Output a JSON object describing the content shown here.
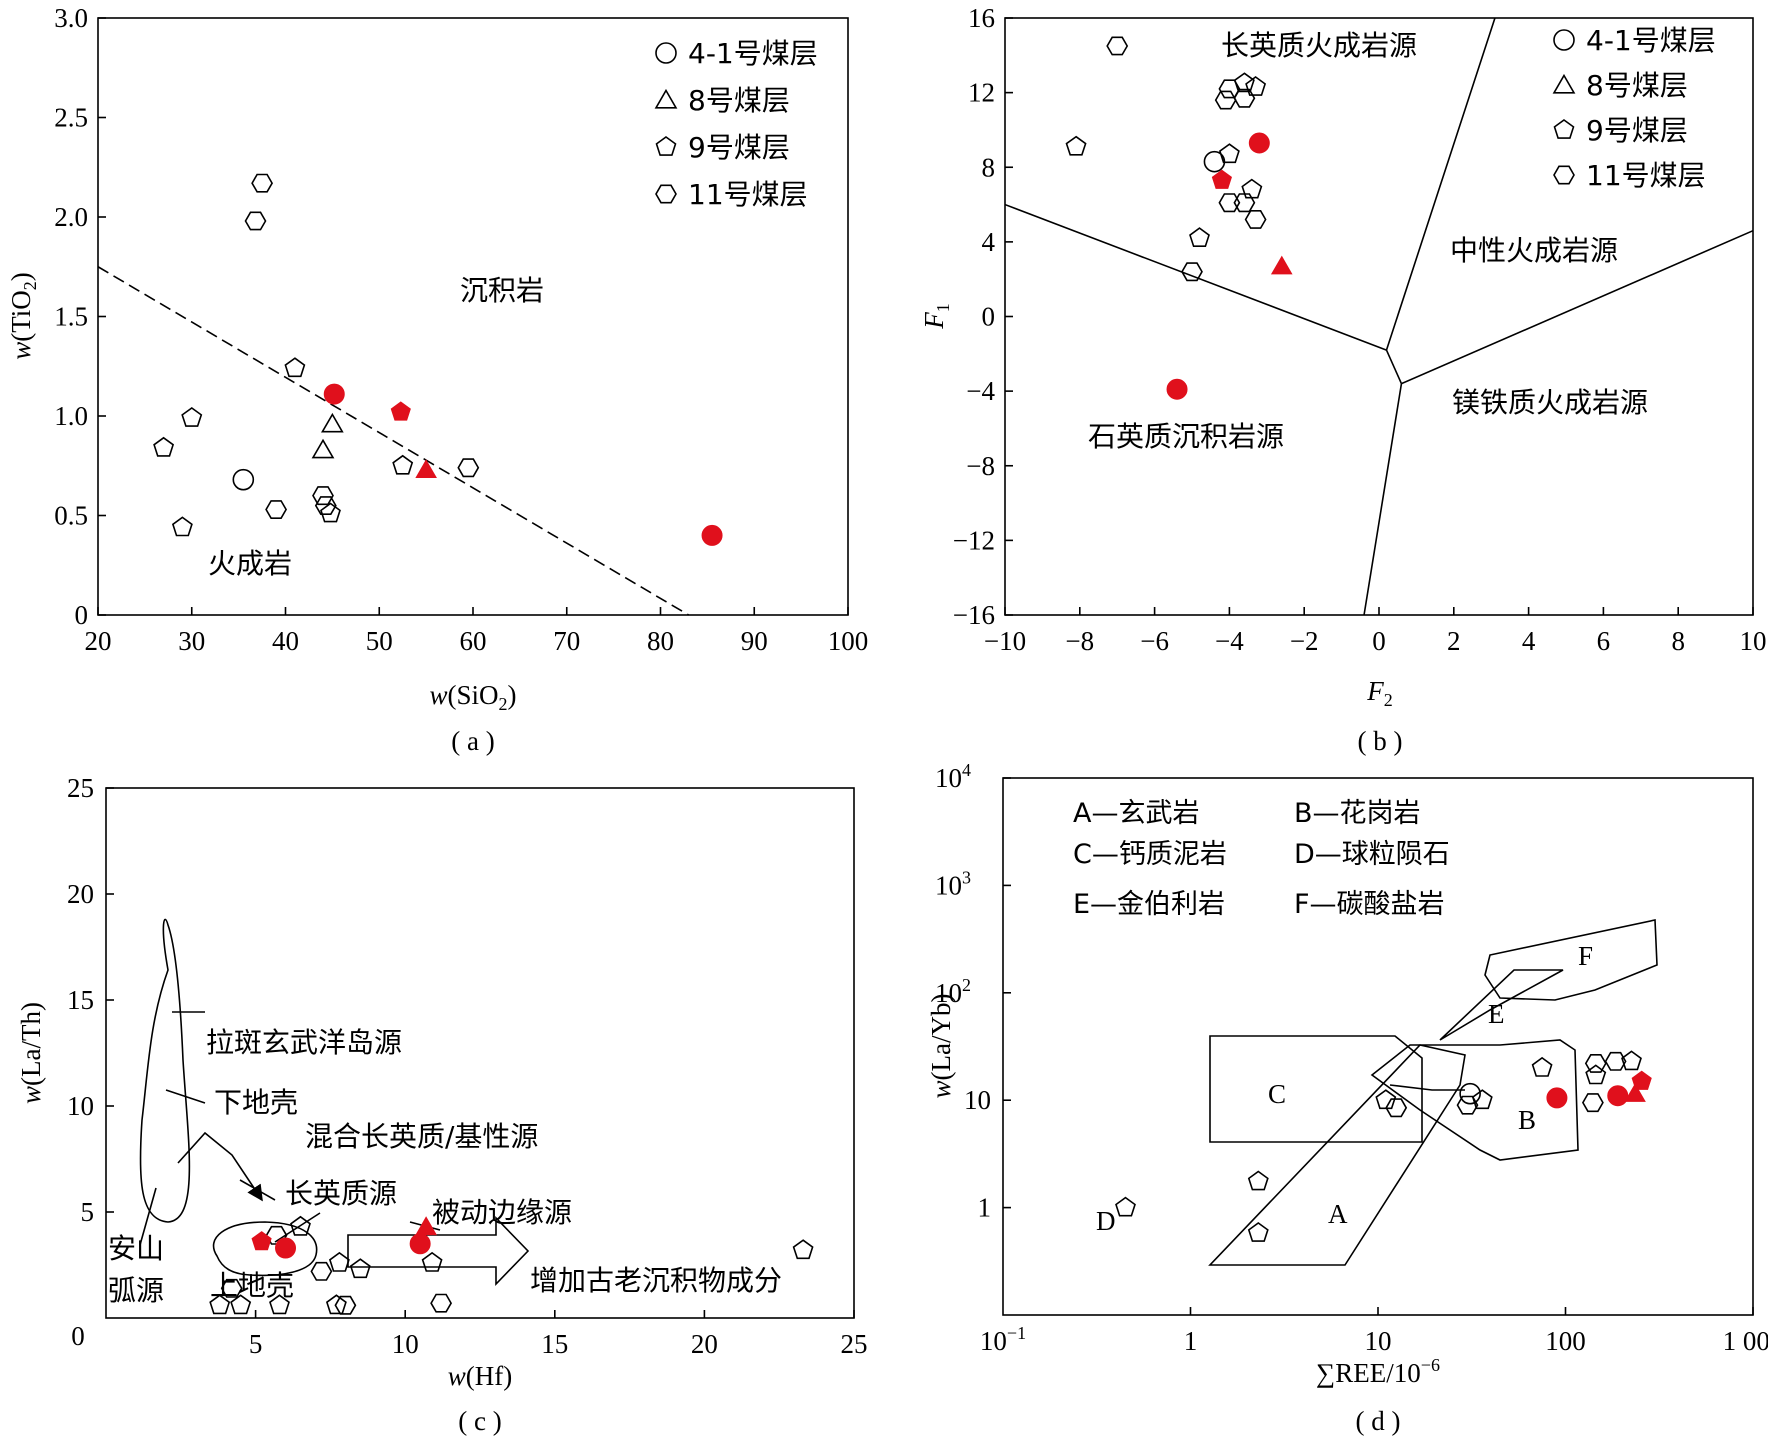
{
  "colors": {
    "red": "#e0101c",
    "black": "#000000"
  },
  "legend": [
    {
      "symbol": "circle",
      "label": "4-1号煤层"
    },
    {
      "symbol": "triangle",
      "label": "8号煤层"
    },
    {
      "symbol": "pentagon",
      "label": "9号煤层"
    },
    {
      "symbol": "hexagon",
      "label": "11号煤层"
    }
  ],
  "chart_data": [
    {
      "panel": "a",
      "caption": "( a )",
      "type": "scatter",
      "xlabel_var": "w",
      "xlabel_arg": "(SiO",
      "xlabel_sub": "2",
      "xlabel_end": ")",
      "ylabel_var": "w",
      "ylabel_arg": "(TiO",
      "ylabel_sub": "2",
      "ylabel_end": ")",
      "xlim": [
        20,
        100
      ],
      "ylim": [
        0,
        3.0
      ],
      "xticks": [
        "20",
        "30",
        "40",
        "50",
        "60",
        "70",
        "80",
        "90",
        "100"
      ],
      "yticks": [
        "0",
        "0.5",
        "1.0",
        "1.5",
        "2.0",
        "2.5",
        "3.0"
      ],
      "annotations": [
        "沉积岩",
        "火成岩"
      ],
      "divider": [
        [
          20,
          1.75
        ],
        [
          83,
          0
        ]
      ],
      "points": [
        {
          "s": "hexagon",
          "x": 37.5,
          "y": 2.17
        },
        {
          "s": "hexagon",
          "x": 36.8,
          "y": 1.98
        },
        {
          "s": "pentagon",
          "x": 41,
          "y": 1.24
        },
        {
          "s": "triangle",
          "x": 45,
          "y": 0.96
        },
        {
          "s": "triangle",
          "x": 44,
          "y": 0.83
        },
        {
          "s": "pentagon",
          "x": 27,
          "y": 0.84
        },
        {
          "s": "pentagon",
          "x": 30,
          "y": 0.99
        },
        {
          "s": "circle",
          "x": 35.5,
          "y": 0.68
        },
        {
          "s": "hexagon",
          "x": 39,
          "y": 0.53
        },
        {
          "s": "hexagon",
          "x": 44,
          "y": 0.6
        },
        {
          "s": "hexagon",
          "x": 44.3,
          "y": 0.55
        },
        {
          "s": "pentagon",
          "x": 44.8,
          "y": 0.51
        },
        {
          "s": "pentagon",
          "x": 52.5,
          "y": 0.75
        },
        {
          "s": "hexagon",
          "x": 59.5,
          "y": 0.74
        },
        {
          "s": "pentagon",
          "x": 29,
          "y": 0.44
        },
        {
          "s": "circle",
          "x": 45.2,
          "y": 1.11,
          "red": true
        },
        {
          "s": "pentagon",
          "x": 52.3,
          "y": 1.02,
          "red": true
        },
        {
          "s": "triangle",
          "x": 55,
          "y": 0.73,
          "red": true
        },
        {
          "s": "circle",
          "x": 85.5,
          "y": 0.4,
          "red": true
        }
      ]
    },
    {
      "panel": "b",
      "caption": "( b )",
      "type": "scatter",
      "xlabel_var": "F",
      "xlabel_sub": "2",
      "ylabel_var": "F",
      "ylabel_sub": "1",
      "xlim": [
        -10,
        10
      ],
      "ylim": [
        -16,
        16
      ],
      "xticks": [
        "−10",
        "−8",
        "−6",
        "−4",
        "−2",
        "0",
        "2",
        "4",
        "6",
        "8",
        "10"
      ],
      "yticks": [
        "−16",
        "−12",
        "−8",
        "−4",
        "0",
        "4",
        "8",
        "12",
        "16"
      ],
      "annotations": [
        "长英质火成岩源",
        "中性火成岩源",
        "石英质沉积岩源",
        "镁铁质火成岩源"
      ],
      "boundaries": [
        [
          [
            -10,
            6
          ],
          [
            0.2,
            -1.8
          ]
        ],
        [
          [
            0.2,
            -1.8
          ],
          [
            3.1,
            16
          ]
        ],
        [
          [
            0.2,
            -1.8
          ],
          [
            0.6,
            -3.6
          ]
        ],
        [
          [
            0.6,
            -3.6
          ],
          [
            10,
            4.6
          ]
        ],
        [
          [
            0.6,
            -3.6
          ],
          [
            -0.4,
            -16
          ]
        ]
      ],
      "points": [
        {
          "s": "hexagon",
          "x": -7,
          "y": 14.5
        },
        {
          "s": "pentagon",
          "x": -8.1,
          "y": 9.1
        },
        {
          "s": "hexagon",
          "x": -4,
          "y": 12.2
        },
        {
          "s": "pentagon",
          "x": -3.6,
          "y": 12.5
        },
        {
          "s": "pentagon",
          "x": -3.3,
          "y": 12.3
        },
        {
          "s": "hexagon",
          "x": -4.1,
          "y": 11.6
        },
        {
          "s": "hexagon",
          "x": -3.6,
          "y": 11.7
        },
        {
          "s": "pentagon",
          "x": -4,
          "y": 8.7
        },
        {
          "s": "circle",
          "x": -4.4,
          "y": 8.3
        },
        {
          "s": "pentagon",
          "x": -3.4,
          "y": 6.8
        },
        {
          "s": "hexagon",
          "x": -4,
          "y": 6.1
        },
        {
          "s": "hexagon",
          "x": -3.6,
          "y": 6.1
        },
        {
          "s": "hexagon",
          "x": -3.3,
          "y": 5.2
        },
        {
          "s": "pentagon",
          "x": -4.8,
          "y": 4.2
        },
        {
          "s": "hexagon",
          "x": -5,
          "y": 2.4
        },
        {
          "s": "circle",
          "x": -3.2,
          "y": 9.3,
          "red": true
        },
        {
          "s": "pentagon",
          "x": -4.2,
          "y": 7.3,
          "red": true
        },
        {
          "s": "triangle",
          "x": -2.6,
          "y": 2.7,
          "red": true
        },
        {
          "s": "circle",
          "x": -5.4,
          "y": -3.9,
          "red": true
        }
      ]
    },
    {
      "panel": "c",
      "caption": "( c )",
      "type": "scatter",
      "xlabel_var": "w",
      "xlabel_arg": "(Hf)",
      "ylabel_var": "w",
      "ylabel_arg": "(La/Th)",
      "xlim": [
        0,
        25
      ],
      "ylim": [
        0,
        25
      ],
      "xticks": [
        "0",
        "5",
        "10",
        "15",
        "20",
        "25"
      ],
      "yticks": [
        "5",
        "10",
        "15",
        "20",
        "25"
      ],
      "annotations": [
        "拉斑玄武洋岛源",
        "下地壳",
        "混合长英质/基性源",
        "长英质源",
        "被动边缘源",
        "安山",
        "弧源",
        "上地壳",
        "增加古老沉积物成分"
      ],
      "points": [
        {
          "s": "hexagon",
          "x": 5.7,
          "y": 3.9
        },
        {
          "s": "pentagon",
          "x": 6.5,
          "y": 4.3
        },
        {
          "s": "hexagon",
          "x": 4.2,
          "y": 1.4
        },
        {
          "s": "pentagon",
          "x": 3.8,
          "y": 0.6
        },
        {
          "s": "pentagon",
          "x": 4.5,
          "y": 0.6
        },
        {
          "s": "pentagon",
          "x": 5.8,
          "y": 0.6
        },
        {
          "s": "hexagon",
          "x": 7.2,
          "y": 2.2
        },
        {
          "s": "pentagon",
          "x": 7.8,
          "y": 2.6
        },
        {
          "s": "pentagon",
          "x": 8.5,
          "y": 2.3
        },
        {
          "s": "pentagon",
          "x": 7.7,
          "y": 0.6
        },
        {
          "s": "hexagon",
          "x": 8,
          "y": 0.6
        },
        {
          "s": "pentagon",
          "x": 10.9,
          "y": 2.6
        },
        {
          "s": "hexagon",
          "x": 11.2,
          "y": 0.7
        },
        {
          "s": "pentagon",
          "x": 23.3,
          "y": 3.2
        },
        {
          "s": "pentagon",
          "x": 5.2,
          "y": 3.6,
          "red": true
        },
        {
          "s": "circle",
          "x": 6,
          "y": 3.3,
          "red": true
        },
        {
          "s": "triangle",
          "x": 10.7,
          "y": 4.3,
          "red": true
        },
        {
          "s": "circle",
          "x": 10.5,
          "y": 3.5,
          "red": true
        }
      ]
    },
    {
      "panel": "d",
      "caption": "( d )",
      "type": "scatter",
      "xlabel": "∑REE/10",
      "xlabel_exp": "−6",
      "ylabel_var": "w",
      "ylabel_arg": "(La/Yb)",
      "xscale": "log",
      "yscale": "log",
      "xlim": [
        0.1,
        1000
      ],
      "ylim": [
        0.1,
        10000
      ],
      "xticks": [
        "1",
        "10",
        "100",
        "1 000"
      ],
      "xtick_min_base": "10",
      "xtick_min_exp": "−1",
      "yticks": [
        "1",
        "10"
      ],
      "yticks_pow": [
        {
          "base": "10",
          "exp": "2"
        },
        {
          "base": "10",
          "exp": "3"
        },
        {
          "base": "10",
          "exp": "4"
        }
      ],
      "legend_text": [
        "A—玄武岩",
        "B—花岗岩",
        "C—钙质泥岩",
        "D—球粒陨石",
        "E—金伯利岩",
        "F—碳酸盐岩"
      ],
      "field_labels": [
        "A",
        "B",
        "C",
        "D",
        "E",
        "F"
      ],
      "points": [
        {
          "s": "pentagon",
          "x": 0.45,
          "y": 1.0
        },
        {
          "s": "pentagon",
          "x": 2.3,
          "y": 1.75
        },
        {
          "s": "pentagon",
          "x": 2.3,
          "y": 0.58
        },
        {
          "s": "pentagon",
          "x": 11,
          "y": 10
        },
        {
          "s": "hexagon",
          "x": 12.5,
          "y": 8.5
        },
        {
          "s": "circle",
          "x": 31,
          "y": 11.5
        },
        {
          "s": "hexagon",
          "x": 30,
          "y": 9
        },
        {
          "s": "pentagon",
          "x": 36,
          "y": 10
        },
        {
          "s": "pentagon",
          "x": 75,
          "y": 20
        },
        {
          "s": "hexagon",
          "x": 140,
          "y": 9.5
        },
        {
          "s": "pentagon",
          "x": 145,
          "y": 17
        },
        {
          "s": "hexagon",
          "x": 145,
          "y": 22
        },
        {
          "s": "hexagon",
          "x": 185,
          "y": 23
        },
        {
          "s": "pentagon",
          "x": 225,
          "y": 23
        },
        {
          "s": "circle",
          "x": 90,
          "y": 10.5,
          "red": true
        },
        {
          "s": "circle",
          "x": 190,
          "y": 11,
          "red": true
        },
        {
          "s": "triangle",
          "x": 235,
          "y": 11.5,
          "red": true
        },
        {
          "s": "pentagon",
          "x": 255,
          "y": 15,
          "red": true
        }
      ]
    }
  ]
}
